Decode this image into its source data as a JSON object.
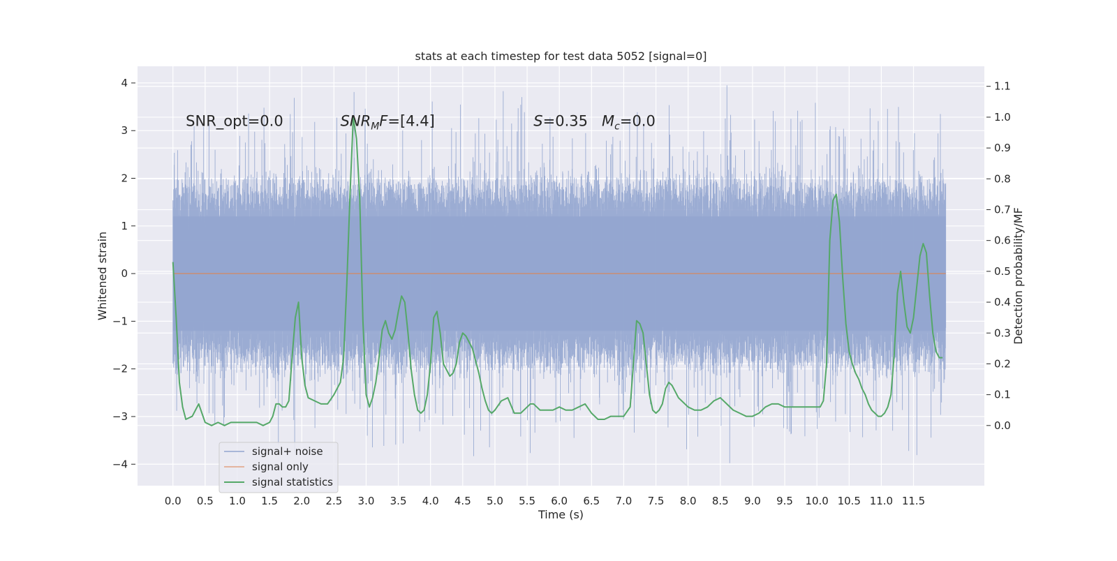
{
  "chart_data": {
    "type": "line",
    "title": "stats at each timestep for test data 5052 [signal=0]",
    "xlabel": "Time (s)",
    "ylabel_left": "Whitened strain",
    "ylabel_right": "Detection probability/MF",
    "xlim": [
      -0.55,
      12.6
    ],
    "ylim_left": [
      -4.45,
      4.35
    ],
    "ylim_right": [
      -0.195,
      1.165
    ],
    "xticks": [
      0.0,
      0.5,
      1.0,
      1.5,
      2.0,
      2.5,
      3.0,
      3.5,
      4.0,
      4.5,
      5.0,
      5.5,
      6.0,
      6.5,
      7.0,
      7.5,
      8.0,
      8.5,
      9.0,
      9.5,
      10.0,
      10.5,
      11.0,
      11.5
    ],
    "xtick_labels": [
      "0.0",
      "0.5",
      "1.0",
      "1.5",
      "2.0",
      "2.5",
      "3.0",
      "3.5",
      "4.0",
      "4.5",
      "5.0",
      "5.5",
      "6.0",
      "6.5",
      "7.0",
      "7.5",
      "8.0",
      "8.5",
      "9.0",
      "9.5",
      "10.0",
      "10.5",
      "11.0",
      "11.5"
    ],
    "yticks_left": [
      -4,
      -3,
      -2,
      -1,
      0,
      1,
      2,
      3,
      4
    ],
    "ytick_labels_left": [
      "−4",
      "−3",
      "−2",
      "−1",
      "0",
      "1",
      "2",
      "3",
      "4"
    ],
    "yticks_right": [
      0.0,
      0.1,
      0.2,
      0.3,
      0.4,
      0.5,
      0.6,
      0.7,
      0.8,
      0.9,
      1.0,
      1.1
    ],
    "ytick_labels_right": [
      "0.0",
      "0.1",
      "0.2",
      "0.3",
      "0.4",
      "0.5",
      "0.6",
      "0.7",
      "0.8",
      "0.9",
      "1.0",
      "1.1"
    ],
    "grid": true,
    "legend_position": "lower-left",
    "annotations": [
      {
        "text": "SNR_opt=0.0",
        "x": 0.2,
        "y": 3.1
      },
      {
        "text": "SNR_MF=[4.4]",
        "x": 2.6,
        "y": 3.1
      },
      {
        "text": "S=0.35   M_c=0.0",
        "x": 5.6,
        "y": 3.1
      }
    ],
    "series": [
      {
        "name": "signal+ noise",
        "axis": "left",
        "color": "#92a5cf",
        "note": "dense whitened noise trace, roughly uniform envelope between about -2.5 and 2.5 with spikes to about ±4",
        "envelope": {
          "x": [
            0.0,
            12.0
          ],
          "typical_min": -2.5,
          "typical_max": 2.5,
          "extreme_min": -4.05,
          "extreme_max": 3.95
        }
      },
      {
        "name": "signal only",
        "axis": "left",
        "color": "#dd8452",
        "x": [
          0.0,
          12.0
        ],
        "y": [
          0.0,
          0.0
        ]
      },
      {
        "name": "signal statistics",
        "axis": "right",
        "color": "#55a868",
        "x": [
          0.0,
          0.05,
          0.1,
          0.15,
          0.2,
          0.3,
          0.4,
          0.5,
          0.6,
          0.7,
          0.8,
          0.9,
          1.0,
          1.1,
          1.2,
          1.3,
          1.4,
          1.5,
          1.55,
          1.6,
          1.65,
          1.7,
          1.75,
          1.8,
          1.85,
          1.9,
          1.95,
          2.0,
          2.05,
          2.1,
          2.2,
          2.3,
          2.4,
          2.5,
          2.6,
          2.65,
          2.7,
          2.75,
          2.8,
          2.85,
          2.9,
          2.95,
          3.0,
          3.05,
          3.1,
          3.15,
          3.2,
          3.25,
          3.3,
          3.35,
          3.4,
          3.45,
          3.5,
          3.55,
          3.6,
          3.65,
          3.7,
          3.75,
          3.8,
          3.85,
          3.9,
          3.95,
          4.0,
          4.05,
          4.1,
          4.15,
          4.2,
          4.25,
          4.3,
          4.35,
          4.4,
          4.45,
          4.5,
          4.55,
          4.6,
          4.65,
          4.7,
          4.75,
          4.8,
          4.85,
          4.9,
          4.95,
          5.0,
          5.1,
          5.2,
          5.3,
          5.4,
          5.5,
          5.55,
          5.6,
          5.65,
          5.7,
          5.8,
          5.9,
          6.0,
          6.1,
          6.2,
          6.3,
          6.4,
          6.5,
          6.6,
          6.7,
          6.8,
          6.9,
          7.0,
          7.1,
          7.15,
          7.2,
          7.25,
          7.3,
          7.35,
          7.4,
          7.45,
          7.5,
          7.55,
          7.6,
          7.65,
          7.7,
          7.75,
          7.8,
          7.85,
          7.9,
          8.0,
          8.1,
          8.2,
          8.3,
          8.4,
          8.5,
          8.6,
          8.7,
          8.8,
          8.9,
          9.0,
          9.1,
          9.2,
          9.3,
          9.4,
          9.5,
          9.6,
          9.7,
          9.8,
          9.9,
          10.0,
          10.05,
          10.1,
          10.15,
          10.2,
          10.25,
          10.3,
          10.35,
          10.4,
          10.45,
          10.5,
          10.55,
          10.6,
          10.65,
          10.7,
          10.75,
          10.8,
          10.85,
          10.9,
          10.95,
          11.0,
          11.05,
          11.1,
          11.15,
          11.2,
          11.25,
          11.3,
          11.35,
          11.4,
          11.45,
          11.5,
          11.55,
          11.6,
          11.65,
          11.7,
          11.75,
          11.8,
          11.85,
          11.9,
          11.95
        ],
        "y": [
          0.53,
          0.35,
          0.14,
          0.06,
          0.02,
          0.03,
          0.07,
          0.01,
          0.0,
          0.01,
          0.0,
          0.01,
          0.01,
          0.01,
          0.01,
          0.01,
          0.0,
          0.01,
          0.03,
          0.07,
          0.07,
          0.06,
          0.06,
          0.08,
          0.22,
          0.35,
          0.4,
          0.22,
          0.13,
          0.09,
          0.08,
          0.07,
          0.07,
          0.1,
          0.14,
          0.22,
          0.46,
          0.75,
          1.0,
          0.93,
          0.74,
          0.34,
          0.1,
          0.06,
          0.09,
          0.14,
          0.22,
          0.31,
          0.34,
          0.3,
          0.28,
          0.31,
          0.37,
          0.42,
          0.4,
          0.3,
          0.18,
          0.1,
          0.05,
          0.04,
          0.05,
          0.1,
          0.2,
          0.35,
          0.37,
          0.3,
          0.2,
          0.18,
          0.16,
          0.17,
          0.2,
          0.27,
          0.3,
          0.29,
          0.27,
          0.25,
          0.21,
          0.17,
          0.12,
          0.08,
          0.05,
          0.04,
          0.05,
          0.08,
          0.09,
          0.04,
          0.04,
          0.06,
          0.07,
          0.07,
          0.06,
          0.05,
          0.05,
          0.05,
          0.06,
          0.05,
          0.05,
          0.06,
          0.07,
          0.04,
          0.02,
          0.02,
          0.03,
          0.03,
          0.03,
          0.06,
          0.2,
          0.34,
          0.33,
          0.3,
          0.2,
          0.1,
          0.05,
          0.04,
          0.05,
          0.07,
          0.12,
          0.14,
          0.13,
          0.11,
          0.09,
          0.08,
          0.06,
          0.05,
          0.05,
          0.06,
          0.08,
          0.09,
          0.07,
          0.05,
          0.04,
          0.03,
          0.03,
          0.04,
          0.06,
          0.07,
          0.07,
          0.06,
          0.06,
          0.06,
          0.06,
          0.06,
          0.06,
          0.06,
          0.08,
          0.2,
          0.6,
          0.73,
          0.75,
          0.66,
          0.48,
          0.33,
          0.24,
          0.2,
          0.17,
          0.15,
          0.12,
          0.1,
          0.07,
          0.05,
          0.04,
          0.03,
          0.03,
          0.04,
          0.06,
          0.1,
          0.23,
          0.43,
          0.5,
          0.4,
          0.32,
          0.3,
          0.35,
          0.45,
          0.55,
          0.59,
          0.56,
          0.42,
          0.3,
          0.24,
          0.22,
          0.22
        ]
      }
    ]
  }
}
